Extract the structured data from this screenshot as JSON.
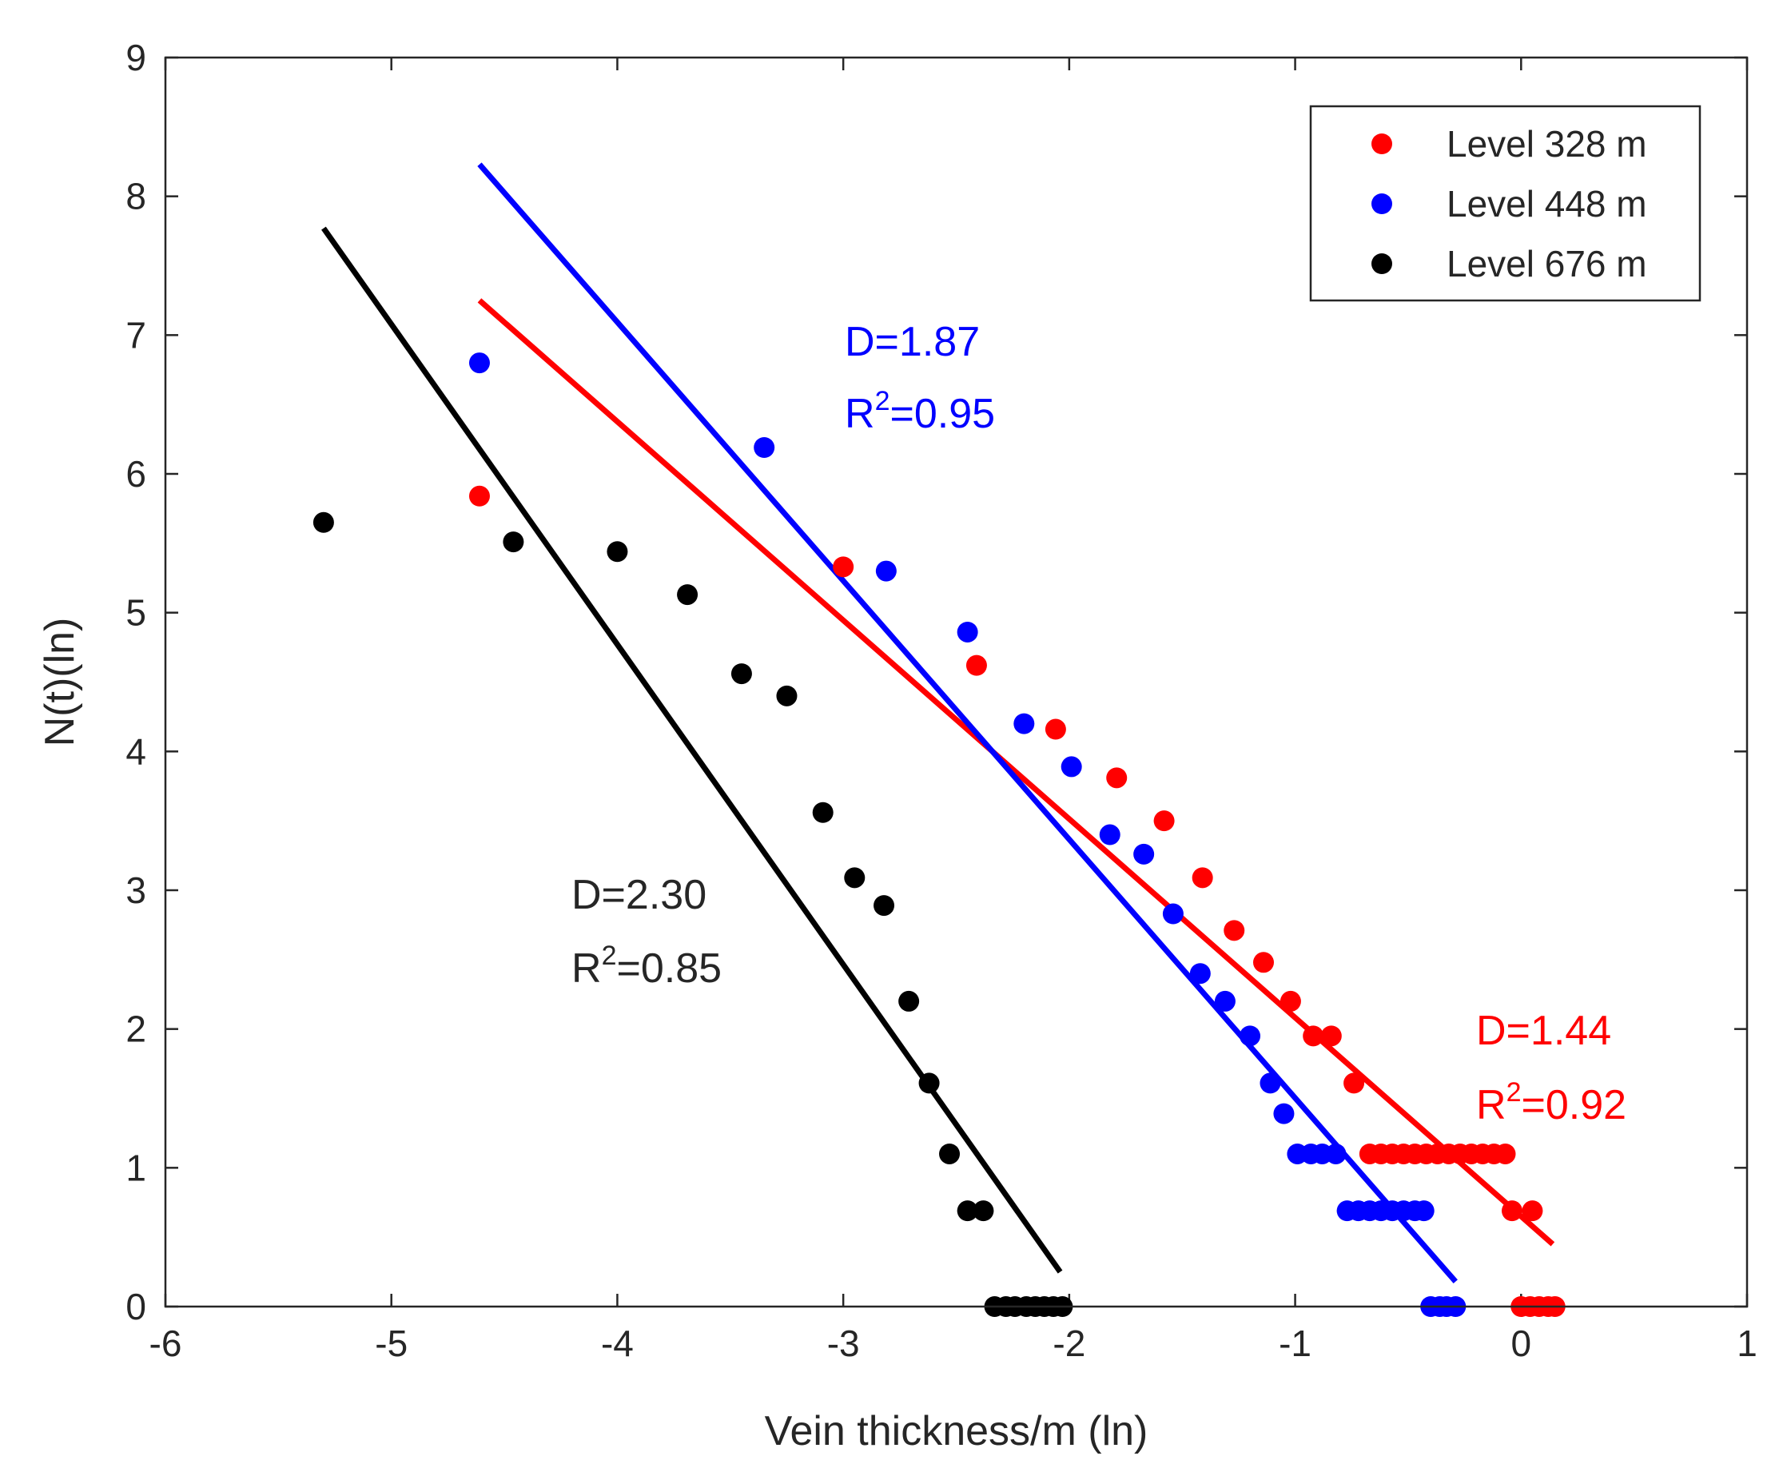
{
  "chart_data": {
    "type": "scatter",
    "title": "",
    "xlabel": "Vein thickness/m (ln)",
    "ylabel": "N(t)(ln)",
    "xlim": [
      -6,
      1
    ],
    "ylim": [
      0,
      9
    ],
    "x_ticks": [
      -6,
      -5,
      -4,
      -3,
      -2,
      -1,
      0,
      1
    ],
    "y_ticks": [
      0,
      1,
      2,
      3,
      4,
      5,
      6,
      7,
      8,
      9
    ],
    "x_tick_labels": [
      "-6",
      "-5",
      "-4",
      "-3",
      "-2",
      "-1",
      "0",
      "1"
    ],
    "y_tick_labels": [
      "0",
      "1",
      "2",
      "3",
      "4",
      "5",
      "6",
      "7",
      "8",
      "9"
    ],
    "legend_position": "top-right",
    "series": [
      {
        "name": "Level 328 m",
        "color": "#ff0000",
        "points": [
          [
            -4.61,
            5.84
          ],
          [
            -3.0,
            5.33
          ],
          [
            -2.41,
            4.62
          ],
          [
            -2.06,
            4.16
          ],
          [
            -1.79,
            3.81
          ],
          [
            -1.58,
            3.5
          ],
          [
            -1.41,
            3.09
          ],
          [
            -1.27,
            2.71
          ],
          [
            -1.14,
            2.48
          ],
          [
            -1.02,
            2.2
          ],
          [
            -0.92,
            1.95
          ],
          [
            -0.84,
            1.95
          ],
          [
            -0.74,
            1.61
          ],
          [
            -0.67,
            1.1
          ],
          [
            -0.62,
            1.1
          ],
          [
            -0.57,
            1.1
          ],
          [
            -0.52,
            1.1
          ],
          [
            -0.47,
            1.1
          ],
          [
            -0.42,
            1.1
          ],
          [
            -0.37,
            1.1
          ],
          [
            -0.32,
            1.1
          ],
          [
            -0.27,
            1.1
          ],
          [
            -0.22,
            1.1
          ],
          [
            -0.17,
            1.1
          ],
          [
            -0.12,
            1.1
          ],
          [
            -0.07,
            1.1
          ],
          [
            -0.04,
            0.69
          ],
          [
            0.05,
            0.69
          ],
          [
            0.0,
            0.0
          ],
          [
            0.04,
            0.0
          ],
          [
            0.08,
            0.0
          ],
          [
            0.12,
            0.0
          ],
          [
            0.15,
            0.0
          ]
        ],
        "fit_line": {
          "x": [
            -4.61,
            0.14
          ],
          "y": [
            7.25,
            0.45
          ]
        },
        "annotation": {
          "D": "D=1.44",
          "R2_prefix": "R",
          "R2_sup": "2",
          "R2_value": "=0.92"
        }
      },
      {
        "name": "Level 448 m",
        "color": "#0000ff",
        "points": [
          [
            -4.61,
            6.8
          ],
          [
            -3.35,
            6.19
          ],
          [
            -2.81,
            5.3
          ],
          [
            -2.45,
            4.86
          ],
          [
            -2.2,
            4.2
          ],
          [
            -1.99,
            3.89
          ],
          [
            -1.82,
            3.4
          ],
          [
            -1.67,
            3.26
          ],
          [
            -1.54,
            2.83
          ],
          [
            -1.42,
            2.4
          ],
          [
            -1.31,
            2.2
          ],
          [
            -1.2,
            1.95
          ],
          [
            -1.11,
            1.61
          ],
          [
            -1.05,
            1.39
          ],
          [
            -0.99,
            1.1
          ],
          [
            -0.93,
            1.1
          ],
          [
            -0.88,
            1.1
          ],
          [
            -0.82,
            1.1
          ],
          [
            -0.77,
            0.69
          ],
          [
            -0.72,
            0.69
          ],
          [
            -0.67,
            0.69
          ],
          [
            -0.62,
            0.69
          ],
          [
            -0.57,
            0.69
          ],
          [
            -0.52,
            0.69
          ],
          [
            -0.47,
            0.69
          ],
          [
            -0.43,
            0.69
          ],
          [
            -0.4,
            0.0
          ],
          [
            -0.36,
            0.0
          ],
          [
            -0.33,
            0.0
          ],
          [
            -0.29,
            0.0
          ]
        ],
        "fit_line": {
          "x": [
            -4.61,
            -0.29
          ],
          "y": [
            8.23,
            0.18
          ]
        },
        "annotation": {
          "D": "D=1.87",
          "R2_prefix": "R",
          "R2_sup": "2",
          "R2_value": "=0.95"
        }
      },
      {
        "name": "Level 676 m",
        "color": "#000000",
        "points": [
          [
            -5.3,
            5.65
          ],
          [
            -4.46,
            5.51
          ],
          [
            -4.0,
            5.44
          ],
          [
            -3.69,
            5.13
          ],
          [
            -3.45,
            4.56
          ],
          [
            -3.25,
            4.4
          ],
          [
            -3.09,
            3.56
          ],
          [
            -2.95,
            3.09
          ],
          [
            -2.82,
            2.89
          ],
          [
            -2.71,
            2.2
          ],
          [
            -2.62,
            1.61
          ],
          [
            -2.53,
            1.1
          ],
          [
            -2.45,
            0.69
          ],
          [
            -2.38,
            0.69
          ],
          [
            -2.33,
            0.0
          ],
          [
            -2.28,
            0.0
          ],
          [
            -2.24,
            0.0
          ],
          [
            -2.19,
            0.0
          ],
          [
            -2.15,
            0.0
          ],
          [
            -2.11,
            0.0
          ],
          [
            -2.07,
            0.0
          ],
          [
            -2.03,
            0.0
          ]
        ],
        "fit_line": {
          "x": [
            -5.3,
            -2.04
          ],
          "y": [
            7.77,
            0.25
          ]
        },
        "annotation": {
          "D": "D=2.30",
          "R2_prefix": "R",
          "R2_sup": "2",
          "R2_value": "=0.85"
        }
      }
    ]
  }
}
